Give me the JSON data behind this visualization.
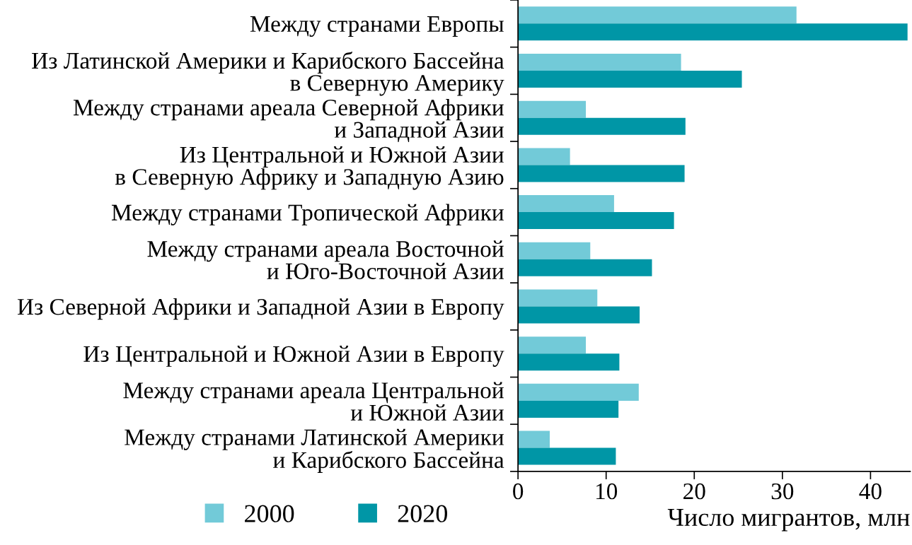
{
  "chart_data": {
    "type": "bar",
    "orientation": "horizontal",
    "xlabel": "Число мигрантов, млн",
    "categories": [
      "Между странами Европы",
      "Из Латинской Америки и Карибского Бассейна\nв Северную Америку",
      "Между странами ареала Северной Африки\nи Западной Азии",
      "Из Центральной и Южной Азии\nв Северную Африку и Западную Азию",
      "Между странами Тропической Африки",
      "Между странами ареала Восточной\nи Юго-Восточной Азии",
      "Из Северной Африки и Западной Азии в Европу",
      "Из Центральной и Южной Азии в Европу",
      "Между странами ареала Центральной\nи Южной Азии",
      "Между странами Латинской Америки\nи Карибского Бассейна"
    ],
    "series": [
      {
        "name": "2000",
        "color": "#72cad8",
        "values": [
          31.6,
          18.5,
          7.7,
          5.9,
          10.9,
          8.2,
          9.0,
          7.7,
          13.7,
          3.6
        ]
      },
      {
        "name": "2020",
        "color": "#0096a6",
        "values": [
          44.2,
          25.4,
          19.0,
          18.9,
          17.7,
          15.2,
          13.8,
          11.5,
          11.4,
          11.1
        ]
      }
    ],
    "xlim": [
      0,
      44.5
    ],
    "xticks": [
      0,
      10,
      20,
      30,
      40
    ],
    "grid": false,
    "legend": "bottom"
  }
}
